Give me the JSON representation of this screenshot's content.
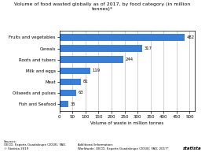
{
  "chart_data": {
    "type": "bar",
    "orientation": "horizontal",
    "title": "Volume of food wasted globally as of 2017, by food category (in million\ntonnes)*",
    "categories": [
      "Fish and Seafood",
      "Oilseeds and pulses",
      "Meat",
      "Milk and eggs",
      "Roots and tubers",
      "Cereals",
      "Fruits and vegetables"
    ],
    "values": [
      35,
      63,
      81,
      119,
      244,
      317,
      482
    ],
    "color": "#3a7fd5",
    "xlabel": "Volume of waste in million tonnes",
    "xlim": [
      0,
      520
    ],
    "xticks": [
      0,
      50,
      100,
      150,
      200,
      250,
      300,
      350,
      400,
      450,
      500
    ],
    "grid": true,
    "data_labels": true,
    "annotations": [
      "Sources:\nOECD, Exports Guadaloupe (2018), FAO.\n© Statista 2019",
      "Additional Information:\nWorldwide; OECD, Exports Guadaloupe (2018); FAO; 2017*",
      "statista"
    ]
  }
}
